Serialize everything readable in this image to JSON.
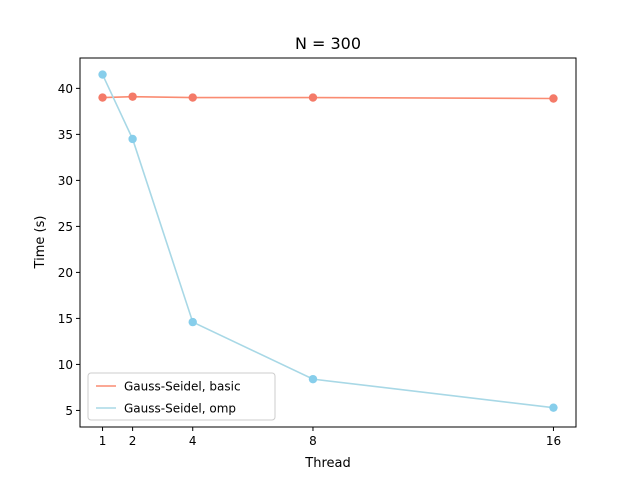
{
  "chart_data": {
    "type": "line",
    "title": "N = 300",
    "xlabel": "Thread",
    "ylabel": "Time (s)",
    "x": [
      1,
      2,
      4,
      8,
      16
    ],
    "x_ticks": [
      1,
      2,
      4,
      8,
      16
    ],
    "y_ticks": [
      5,
      10,
      15,
      20,
      25,
      30,
      35,
      40
    ],
    "xlim": [
      0.25,
      16.75
    ],
    "ylim": [
      3.2,
      43.3
    ],
    "grid": false,
    "legend_placement": "lower-left",
    "series": [
      {
        "name": "Gauss-Seidel, basic",
        "line_color": "#fa8c72",
        "marker_color": "#f47a68",
        "values": [
          39.0,
          39.1,
          39.0,
          39.0,
          38.9
        ]
      },
      {
        "name": "Gauss-Seidel, omp",
        "line_color": "#a8d8e6",
        "marker_color": "#87ceeb",
        "values": [
          41.5,
          34.5,
          14.6,
          8.4,
          5.3
        ]
      }
    ]
  }
}
